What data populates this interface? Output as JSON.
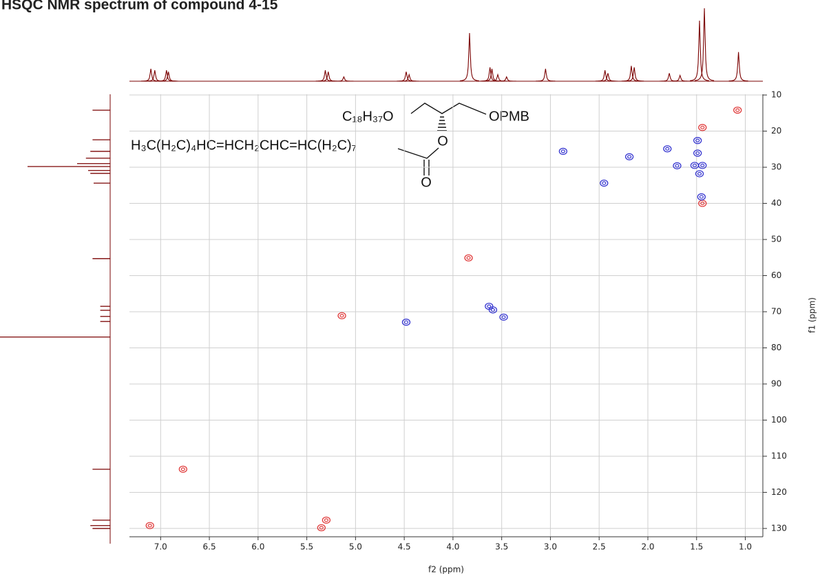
{
  "chart_data": {
    "type": "scatter",
    "title": "HSQC NMR spectrum of compound 4-15",
    "x_label": "f2 (ppm)",
    "y_label": "f1 (ppm)",
    "xlim": [
      7.32,
      0.82
    ],
    "ylim": [
      9.8,
      132.3
    ],
    "xticks": [
      {
        "value": 7,
        "label": "7.0"
      },
      {
        "value": 6.5,
        "label": "6.5"
      },
      {
        "value": 6,
        "label": "6.0"
      },
      {
        "value": 5.5,
        "label": "5.5"
      },
      {
        "value": 5,
        "label": "5.0"
      },
      {
        "value": 4.5,
        "label": "4.5"
      },
      {
        "value": 4,
        "label": "4.0"
      },
      {
        "value": 3.5,
        "label": "3.5"
      },
      {
        "value": 3,
        "label": "3.0"
      },
      {
        "value": 2.5,
        "label": "2.5"
      },
      {
        "value": 2,
        "label": "2.0"
      },
      {
        "value": 1.5,
        "label": "1.5"
      },
      {
        "value": 1,
        "label": "1.0"
      }
    ],
    "yticks": [
      10,
      20,
      30,
      40,
      50,
      60,
      70,
      80,
      90,
      100,
      110,
      120,
      130
    ],
    "grid": true,
    "series": [
      {
        "color": "#e03a3a",
        "x": [
          1.08,
          1.44,
          1.44,
          3.84,
          5.14,
          6.77,
          7.11,
          5.3,
          5.35
        ],
        "values": [
          14.2,
          19,
          40,
          55.1,
          71.1,
          113.6,
          129.2,
          127.7,
          129.8
        ]
      },
      {
        "color": "#3636d0",
        "x": [
          2.87,
          2.45,
          2.19,
          1.8,
          1.7,
          1.49,
          1.49,
          1.52,
          1.44,
          1.47,
          1.45,
          4.48,
          3.63,
          3.59,
          3.48
        ],
        "values": [
          25.6,
          34.4,
          27.1,
          24.9,
          29.6,
          22.6,
          26.1,
          29.5,
          29.5,
          31.8,
          38.2,
          72.9,
          68.5,
          69.5,
          71.5
        ]
      }
    ],
    "top_projection": {
      "color": "#7a0000",
      "x": [
        7.1,
        7.06,
        6.94,
        6.92,
        5.31,
        5.28,
        5.12,
        4.48,
        4.45,
        3.83,
        3.62,
        3.6,
        3.54,
        3.45,
        3.05,
        2.44,
        2.41,
        2.17,
        2.14,
        1.78,
        1.67,
        1.47,
        1.42,
        1.07
      ],
      "values": [
        17,
        15,
        15,
        13,
        15,
        13,
        6,
        13,
        9,
        66,
        19,
        17,
        9,
        6,
        17,
        15,
        11,
        21,
        19,
        11,
        8,
        83,
        100,
        40
      ]
    },
    "left_projection": {
      "color": "#7a0000",
      "y": [
        14.2,
        22.4,
        25.6,
        27.5,
        29,
        29.8,
        30.9,
        31.7,
        34.4,
        55.3,
        68.5,
        69.6,
        71.3,
        72.7,
        77,
        113.6,
        127.7,
        129.2,
        130
      ],
      "values": [
        16,
        16,
        18,
        22,
        30,
        75,
        20,
        18,
        15,
        16,
        9,
        9,
        9,
        9,
        100,
        16,
        16,
        18,
        16
      ]
    }
  },
  "structure": {
    "labels": [
      "C₁₈H₃₇O",
      "OPMB",
      "H₃C(H₂C)₄HC=HCH₂CHC=HC(H₂C)₇",
      "O",
      "O"
    ]
  }
}
